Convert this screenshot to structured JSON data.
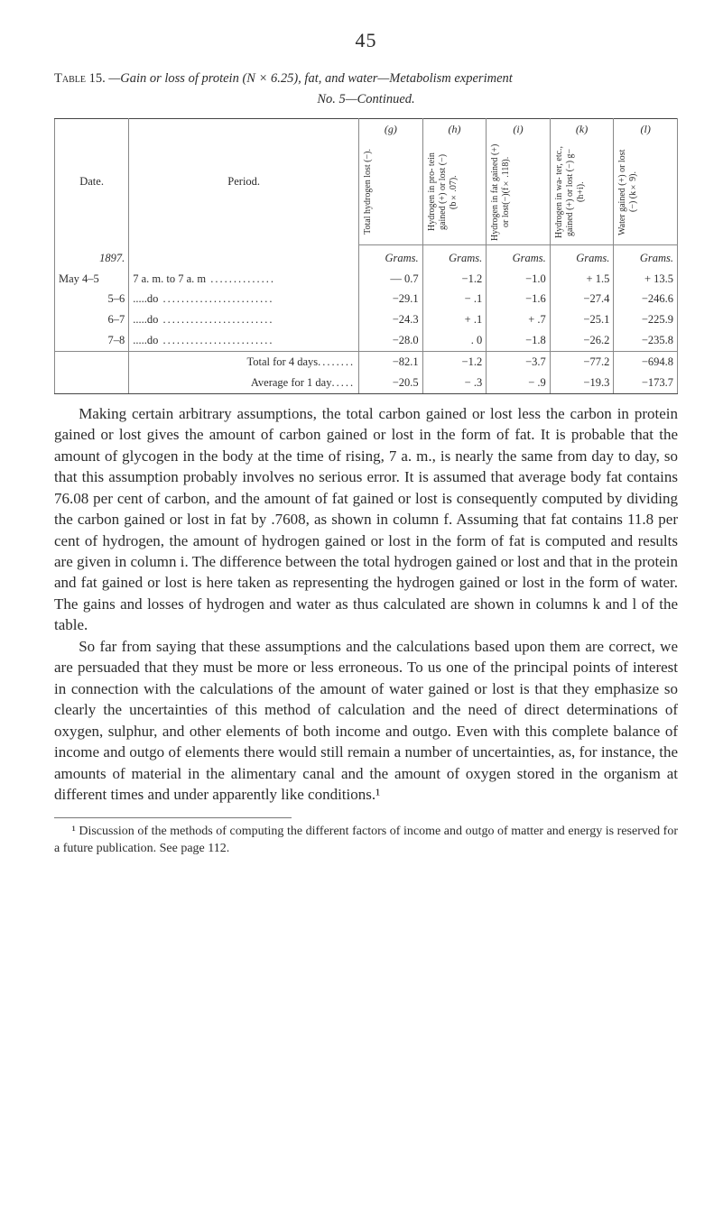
{
  "page_number": "45",
  "caption": {
    "label": "Table 15.",
    "title_before_italic": "—Gain or loss of protein (N × 6.25), fat, and water—Metabolism experiment",
    "sub": "No. 5—Continued."
  },
  "table": {
    "col_keys": [
      "(g)",
      "(h)",
      "(i)",
      "(k)",
      "(l)"
    ],
    "headers": {
      "date": "Date.",
      "period": "Period.",
      "g": "Total hydrogen lost (−).",
      "h": "Hydrogen in pro-\ntein gained (+)\nor lost (−)\n(b×.07).",
      "i": "Hydrogen in fat\ngained (+) or\nlost(−)(f×.118).",
      "k": "Hydrogen in wa-\nter, etc., gained\n(+) or lost (−)\ng−(h+i).",
      "l": "Water gained (+)\nor lost (−)\n(k×9)."
    },
    "unit": "Grams.",
    "year_row": {
      "date": "1897."
    },
    "rows": [
      {
        "date": "May 4–5",
        "period": "7 a. m. to 7 a. m",
        "g": "— 0.7",
        "h": "−1.2",
        "i": "−1.0",
        "k": "+ 1.5",
        "l": "+ 13.5"
      },
      {
        "date": "5–6",
        "period": ".....do",
        "g": "−29.1",
        "h": "− .1",
        "i": "−1.6",
        "k": "−27.4",
        "l": "−246.6"
      },
      {
        "date": "6–7",
        "period": ".....do",
        "g": "−24.3",
        "h": "+ .1",
        "i": "+ .7",
        "k": "−25.1",
        "l": "−225.9"
      },
      {
        "date": "7–8",
        "period": ".....do",
        "g": "−28.0",
        "h": ". 0",
        "i": "−1.8",
        "k": "−26.2",
        "l": "−235.8"
      }
    ],
    "summary": [
      {
        "label": "Total for 4 days",
        "g": "−82.1",
        "h": "−1.2",
        "i": "−3.7",
        "k": "−77.2",
        "l": "−694.8"
      },
      {
        "label": "Average for 1 day",
        "g": "−20.5",
        "h": "− .3",
        "i": "− .9",
        "k": "−19.3",
        "l": "−173.7"
      }
    ]
  },
  "paragraphs": [
    "Making certain arbitrary assumptions, the total carbon gained or lost less the carbon in protein gained or lost gives the amount of carbon gained or lost in the form of fat. It is probable that the amount of glycogen in the body at the time of rising, 7 a. m., is nearly the same from day to day, so that this assumption probably involves no serious error. It is assumed that average body fat contains 76.08 per cent of carbon, and the amount of fat gained or lost is consequently computed by dividing the carbon gained or lost in fat by .7608, as shown in column f. Assuming that fat contains 11.8 per cent of hydrogen, the amount of hydrogen gained or lost in the form of fat is computed and results are given in column i. The difference between the total hydrogen gained or lost and that in the protein and fat gained or lost is here taken as representing the hydrogen gained or lost in the form of water. The gains and losses of hydrogen and water as thus calculated are shown in columns k and l of the table.",
    "So far from saying that these assumptions and the calculations based upon them are correct, we are persuaded that they must be more or less erroneous. To us one of the principal points of interest in connection with the calculations of the amount of water gained or lost is that they emphasize so clearly the uncertainties of this method of calculation and the need of direct determinations of oxygen, sulphur, and other elements of both income and outgo. Even with this complete balance of income and outgo of elements there would still remain a number of uncertainties, as, for instance, the amounts of material in the alimentary canal and the amount of oxygen stored in the organism at different times and under apparently like conditions.¹"
  ],
  "footnote": "¹ Discussion of the methods of computing the different factors of income and outgo of matter and energy is reserved for a future publication. See page 112."
}
